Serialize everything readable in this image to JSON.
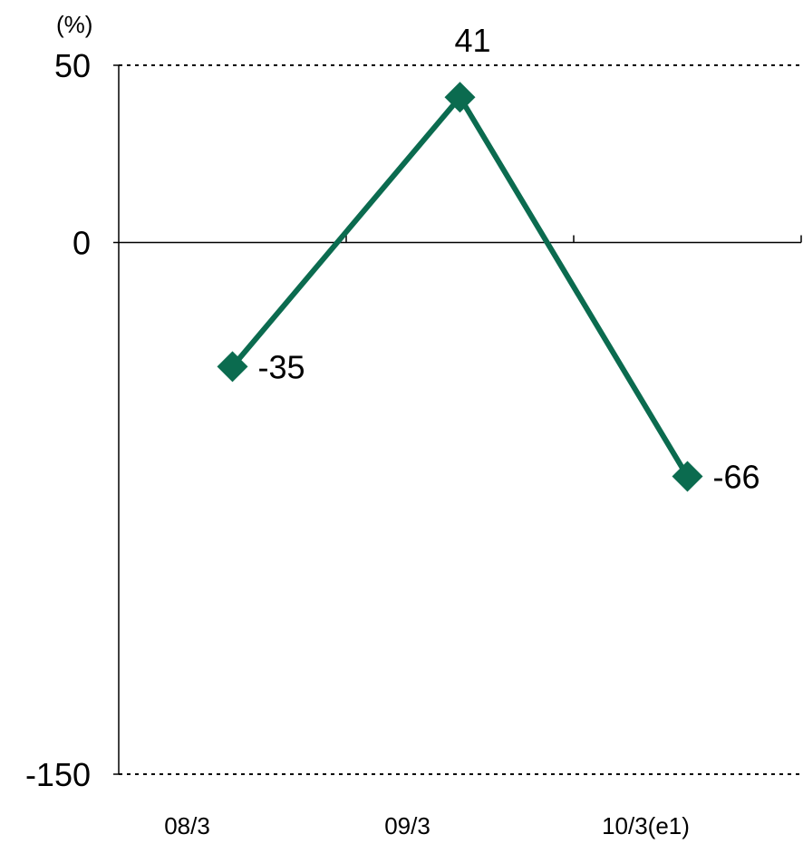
{
  "chart_data": {
    "type": "line",
    "categories": [
      "08/3",
      "09/3",
      "10/3(e1)"
    ],
    "series": [
      {
        "values": [
          -35,
          41,
          -66
        ],
        "color": "#0b6b4f"
      }
    ],
    "data_labels": [
      "-35",
      "41",
      "-66"
    ],
    "y_unit_label": "(%)",
    "y_ticks": [
      50,
      0,
      -150
    ],
    "y_tick_labels": [
      "50",
      "0",
      "-150"
    ],
    "ylim": [
      -150,
      50
    ],
    "grid": "dotted lines at top and bottom only",
    "marker": "diamond"
  }
}
